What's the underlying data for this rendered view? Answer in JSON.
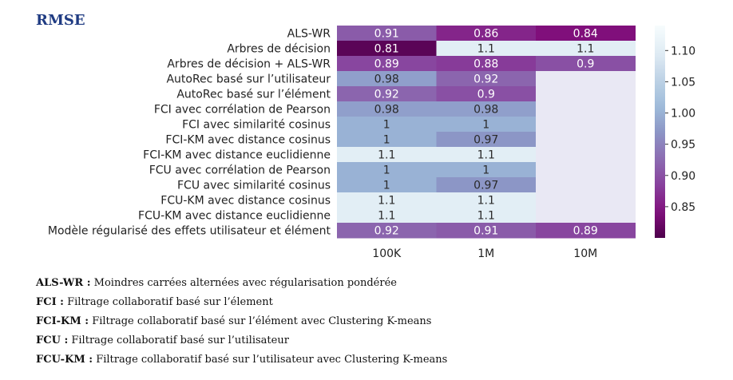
{
  "title": "RMSE",
  "chart_data": {
    "type": "heatmap",
    "rows": [
      "ALS-WR",
      "Arbres de décision",
      "Arbres de décision + ALS-WR",
      "AutoRec basé sur l’utilisateur",
      "AutoRec basé sur l’élément",
      "FCI avec corrélation de Pearson",
      "FCI avec similarité cosinus",
      "FCI-KM avec distance cosinus",
      "FCI-KM avec distance euclidienne",
      "FCU avec corrélation de Pearson",
      "FCU avec similarité cosinus",
      "FCU-KM avec distance cosinus",
      "FCU-KM avec distance euclidienne",
      "Modèle régularisé des effets utilisateur et élément"
    ],
    "columns": [
      "100K",
      "1M",
      "10M"
    ],
    "values": [
      [
        0.91,
        0.86,
        0.84
      ],
      [
        0.81,
        1.1,
        1.1
      ],
      [
        0.89,
        0.88,
        0.9
      ],
      [
        0.98,
        0.92,
        null
      ],
      [
        0.92,
        0.9,
        null
      ],
      [
        0.98,
        0.98,
        null
      ],
      [
        1.0,
        1.0,
        null
      ],
      [
        1.0,
        0.97,
        null
      ],
      [
        1.1,
        1.1,
        null
      ],
      [
        1.0,
        1.0,
        null
      ],
      [
        1.0,
        0.97,
        null
      ],
      [
        1.1,
        1.1,
        null
      ],
      [
        1.1,
        1.1,
        null
      ],
      [
        0.92,
        0.91,
        0.89
      ]
    ],
    "labels": [
      [
        "0.91",
        "0.86",
        "0.84"
      ],
      [
        "0.81",
        "1.1",
        "1.1"
      ],
      [
        "0.89",
        "0.88",
        "0.9"
      ],
      [
        "0.98",
        "0.92",
        ""
      ],
      [
        "0.92",
        "0.9",
        ""
      ],
      [
        "0.98",
        "0.98",
        ""
      ],
      [
        "1",
        "1",
        ""
      ],
      [
        "1",
        "0.97",
        ""
      ],
      [
        "1.1",
        "1.1",
        ""
      ],
      [
        "1",
        "1",
        ""
      ],
      [
        "1",
        "0.97",
        ""
      ],
      [
        "1.1",
        "1.1",
        ""
      ],
      [
        "1.1",
        "1.1",
        ""
      ],
      [
        "0.92",
        "0.91",
        "0.89"
      ]
    ],
    "missing_color": "#e9e8f4",
    "colorbar": {
      "min": 0.8,
      "max": 1.14,
      "ticks": [
        0.85,
        0.9,
        0.95,
        1.0,
        1.05,
        1.1
      ],
      "tick_labels": [
        "0.85",
        "0.90",
        "0.95",
        "1.00",
        "1.05",
        "1.10"
      ],
      "colormap": "BuPu_r"
    }
  },
  "notes": [
    {
      "abbr": "ALS-WR :",
      "text": " Moindres carrées alternées avec régularisation pondérée"
    },
    {
      "abbr": "FCI :",
      "text": " Filtrage collaboratif basé sur l’élement"
    },
    {
      "abbr": "FCI-KM :",
      "text": " Filtrage collaboratif basé sur l’élément avec Clustering K-means"
    },
    {
      "abbr": "FCU :",
      "text": " Filtrage collaboratif basé sur l’utilisateur"
    },
    {
      "abbr": "FCU-KM :",
      "text": " Filtrage collaboratif basé sur l’utilisateur avec Clustering K-means"
    }
  ]
}
